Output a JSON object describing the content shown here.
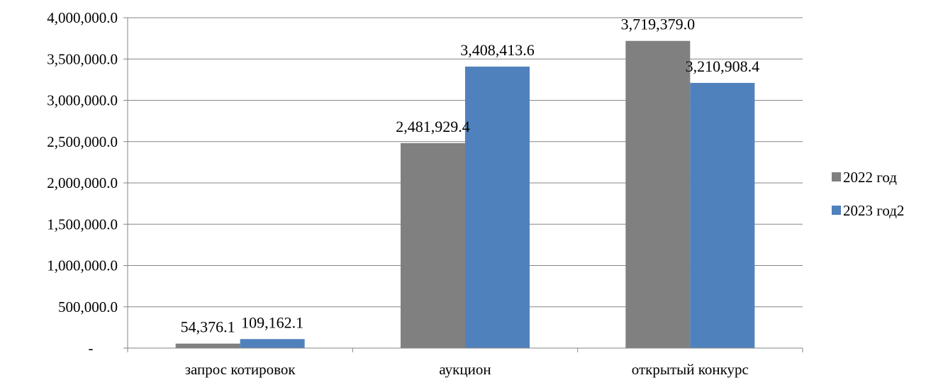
{
  "chart_data": {
    "type": "bar",
    "categories": [
      "запрос котировок",
      "аукцион",
      "открытый конкурс"
    ],
    "series": [
      {
        "name": "2022 год",
        "color": "#808080",
        "values": [
          54376.1,
          2481929.4,
          3719379.0
        ],
        "labels": [
          "54,376.1",
          "2,481,929.4",
          "3,719,379.0"
        ]
      },
      {
        "name": "2023 год2",
        "color": "#4f81bd",
        "values": [
          109162.1,
          3408413.6,
          3210908.4
        ],
        "labels": [
          "109,162.1",
          "3,408,413.6",
          "3,210,908.4"
        ]
      }
    ],
    "ylim": [
      0,
      4000000
    ],
    "yticks": [
      0,
      500000,
      1000000,
      1500000,
      2000000,
      2500000,
      3000000,
      3500000,
      4000000
    ],
    "ytick_labels": [
      "-",
      "500,000.0",
      "1,000,000.0",
      "1,500,000.0",
      "2,000,000.0",
      "2,500,000.0",
      "3,000,000.0",
      "3,500,000.0",
      "4,000,000.0"
    ],
    "grid": true,
    "legend_position": "right",
    "axis_color": "#868686",
    "grid_color": "#868686"
  }
}
